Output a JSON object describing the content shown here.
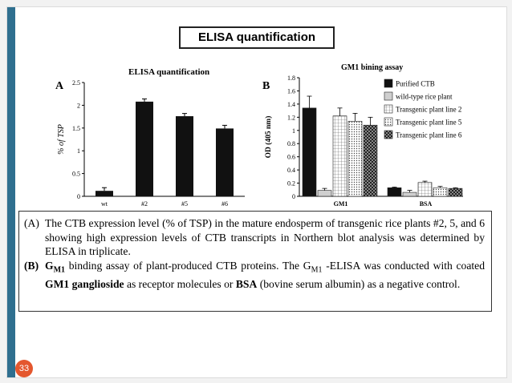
{
  "slide_title": "ELISA quantification",
  "page_number": "33",
  "chart_data": [
    {
      "type": "bar",
      "panel": "A",
      "title": "ELISA quantification",
      "ylabel": "% of TSP",
      "xlabel": "",
      "categories": [
        "wt",
        "#2",
        "#5",
        "#6"
      ],
      "values": [
        0.12,
        2.08,
        1.76,
        1.49
      ],
      "errors": [
        0.07,
        0.06,
        0.06,
        0.07
      ],
      "yticks": [
        "0",
        "0.5",
        "1",
        "1.5",
        "2",
        "2.5"
      ],
      "ylim": [
        0,
        2.5
      ],
      "grid": false,
      "color": "#111111"
    },
    {
      "type": "bar",
      "panel": "B",
      "title": "GM1 bining assay",
      "ylabel": "OD (405 nm)",
      "xlabel": "",
      "categories": [
        "GM1",
        "BSA"
      ],
      "yticks": [
        "0",
        "0.2",
        "0.4",
        "0.6",
        "0.8",
        "1",
        "1.2",
        "1.4",
        "1.6",
        "1.8"
      ],
      "ylim": [
        0,
        1.8
      ],
      "grid": false,
      "legend_position": "top-right",
      "series": [
        {
          "name": "Purified CTB",
          "values": [
            1.34,
            0.13
          ],
          "errors": [
            0.18,
            0.01
          ],
          "pattern": "solid-black"
        },
        {
          "name": "wild-type rice plant",
          "values": [
            0.09,
            0.06
          ],
          "errors": [
            0.03,
            0.03
          ],
          "pattern": "light-gray"
        },
        {
          "name": "Transgenic plant line 2",
          "values": [
            1.22,
            0.21
          ],
          "errors": [
            0.12,
            0.02
          ],
          "pattern": "grid"
        },
        {
          "name": "Transgenic plant line 5",
          "values": [
            1.14,
            0.13
          ],
          "errors": [
            0.12,
            0.02
          ],
          "pattern": "dots"
        },
        {
          "name": "Transgenic plant line 6",
          "values": [
            1.08,
            0.12
          ],
          "errors": [
            0.12,
            0.01
          ],
          "pattern": "dark-check"
        }
      ]
    }
  ],
  "caption": {
    "a_label": "(A)",
    "a_text": "The CTB expression level (% of TSP) in the mature endosperm of transgenic rice plants #2, 5, and 6 showing high expression levels of CTB transcripts in Northern blot analysis was determined by ELISA in triplicate.",
    "b_label": "(B)",
    "b_g": "G",
    "b_m1": "M1",
    "b_text1": " binding assay of plant-produced CTB proteins. The G",
    "b_sub2": "M1",
    "b_text2": " -ELISA was conducted with coated ",
    "b_bold1": "GM1 ganglioside",
    "b_text3": " as receptor molecules or ",
    "b_bold2": "BSA",
    "b_text4": " (bovine serum albumin) as a negative control."
  }
}
